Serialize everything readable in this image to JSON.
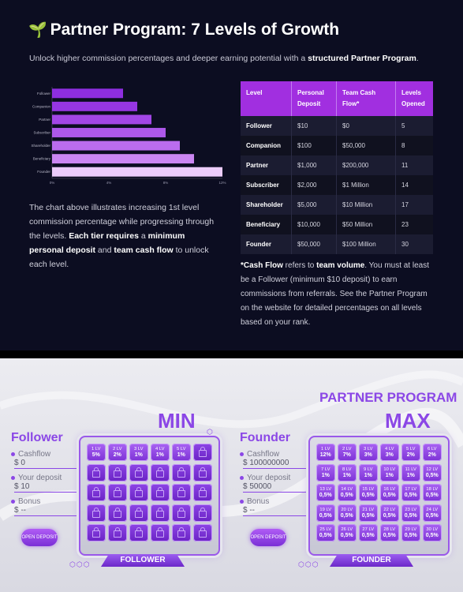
{
  "top": {
    "emoji": "🌱",
    "title": "Partner Program: 7 Levels of Growth",
    "intro_pre": "Unlock higher commission percentages and deeper earning potential with a ",
    "intro_bold": "structured Partner Program",
    "intro_post": ".",
    "chart_text": {
      "p1": "The chart above illustrates increasing 1st level commission percentage while progressing through the levels. ",
      "b1": "Each tier requires",
      "p2": " a ",
      "b2": "minimum personal deposit",
      "p3": " and ",
      "b3": "team cash flow",
      "p4": " to unlock each level."
    },
    "table": {
      "headers": [
        "Level",
        "Personal Deposit",
        "Team Cash Flow*",
        "Levels Opened"
      ],
      "rows": [
        [
          "Follower",
          "$10",
          "$0",
          "5"
        ],
        [
          "Companion",
          "$100",
          "$50,000",
          "8"
        ],
        [
          "Partner",
          "$1,000",
          "$200,000",
          "11"
        ],
        [
          "Subscriber",
          "$2,000",
          "$1 Million",
          "14"
        ],
        [
          "Shareholder",
          "$5,000",
          "$10 Million",
          "17"
        ],
        [
          "Beneficiary",
          "$10,000",
          "$50 Million",
          "23"
        ],
        [
          "Founder",
          "$50,000",
          "$100 Million",
          "30"
        ]
      ]
    },
    "note": {
      "b1": "*Cash Flow",
      "p1": " refers to ",
      "b2": "team volume",
      "p2": ". You must at least be a Follower (minimum $10 deposit) to earn commissions from referrals. See the Partner Program on the website for detailed percentages on all levels based on your rank."
    }
  },
  "chart_data": {
    "type": "bar",
    "orientation": "horizontal",
    "categories": [
      "Follower",
      "Companion",
      "Partner",
      "Subscriber",
      "Shareholder",
      "Beneficiary",
      "Founder"
    ],
    "values": [
      5,
      6,
      7,
      8,
      9,
      10,
      12
    ],
    "xticks": [
      "0%",
      "4%",
      "8%",
      "12%"
    ],
    "xlim": [
      0,
      12
    ],
    "colors": [
      "#8e2ee0",
      "#9636e2",
      "#a246e6",
      "#ad58ea",
      "#bb6cee",
      "#cb86f2",
      "#ecccfb"
    ]
  },
  "banner": {
    "title": "PARTNER PROGRAM",
    "min_label": "MIN",
    "max_label": "MAX",
    "left": {
      "name": "Follower",
      "cashflow_label": "Cashflow",
      "cashflow_value": "$ 0",
      "deposit_label": "Your deposit",
      "deposit_value": "$ 10",
      "bonus_label": "Bonus",
      "bonus_value": "$ --",
      "button": "OPEN DEPOSIT",
      "plate": "FOLLOWER",
      "open_cells": [
        [
          "1 LV",
          "5%"
        ],
        [
          "2 LV",
          "2%"
        ],
        [
          "3 LV",
          "1%"
        ],
        [
          "4 LV",
          "1%"
        ],
        [
          "5 LV",
          "1%"
        ]
      ],
      "locked_count": 25
    },
    "right": {
      "name": "Founder",
      "cashflow_label": "Cashflow",
      "cashflow_value": "$ 100000000",
      "deposit_label": "Your deposit",
      "deposit_value": "$ 50000",
      "bonus_label": "Bonus",
      "bonus_value": "$ --",
      "button": "OPEN DEPOSIT",
      "plate": "FOUNDER",
      "cells": [
        [
          "1 LV",
          "12%"
        ],
        [
          "2 LV",
          "7%"
        ],
        [
          "3 LV",
          "3%"
        ],
        [
          "4 LV",
          "3%"
        ],
        [
          "5 LV",
          "2%"
        ],
        [
          "6 LV",
          "2%"
        ],
        [
          "7 LV",
          "1%"
        ],
        [
          "8 LV",
          "1%"
        ],
        [
          "9 LV",
          "1%"
        ],
        [
          "10 LV",
          "1%"
        ],
        [
          "11 LV",
          "1%"
        ],
        [
          "12 LV",
          "0,5%"
        ],
        [
          "13 LV",
          "0,5%"
        ],
        [
          "14 LV",
          "0,5%"
        ],
        [
          "15 LV",
          "0,5%"
        ],
        [
          "16 LV",
          "0,5%"
        ],
        [
          "17 LV",
          "0,5%"
        ],
        [
          "18 LV",
          "0,5%"
        ],
        [
          "19 LV",
          "0,5%"
        ],
        [
          "20 LV",
          "0,5%"
        ],
        [
          "21 LV",
          "0,5%"
        ],
        [
          "22 LV",
          "0,5%"
        ],
        [
          "23 LV",
          "0,5%"
        ],
        [
          "24 LV",
          "0,5%"
        ],
        [
          "25 LV",
          "0,5%"
        ],
        [
          "26 LV",
          "0,5%"
        ],
        [
          "27 LV",
          "0,5%"
        ],
        [
          "28 LV",
          "0,5%"
        ],
        [
          "29 LV",
          "0,5%"
        ],
        [
          "30 LV",
          "0,5%"
        ]
      ]
    }
  }
}
